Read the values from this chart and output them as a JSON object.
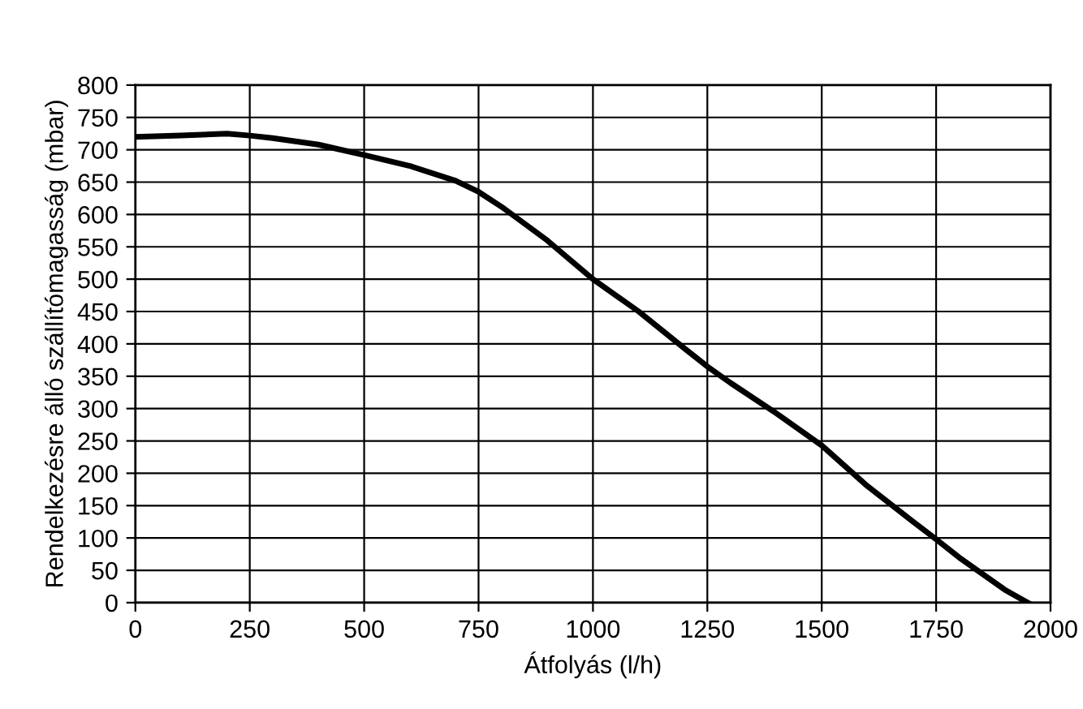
{
  "chart_data": {
    "type": "line",
    "xlabel": "Átfolyás (l/h)",
    "ylabel": "Rendelkezésre álló szállítómagasság (mbar)",
    "series": [
      {
        "color": "#000000",
        "x": [
          0,
          100,
          200,
          250,
          300,
          400,
          500,
          600,
          700,
          750,
          800,
          900,
          1000,
          1100,
          1200,
          1250,
          1300,
          1400,
          1500,
          1600,
          1700,
          1750,
          1800,
          1900,
          1950
        ],
        "values": [
          720,
          722,
          725,
          722,
          718,
          708,
          692,
          675,
          652,
          635,
          612,
          560,
          500,
          450,
          393,
          365,
          340,
          293,
          243,
          180,
          125,
          98,
          70,
          20,
          0
        ]
      }
    ],
    "xlim": [
      0,
      2000
    ],
    "xticks": [
      0,
      250,
      500,
      750,
      1000,
      1250,
      1500,
      1750,
      2000
    ],
    "ylim": [
      0,
      800
    ],
    "yticks": [
      0,
      50,
      100,
      150,
      200,
      250,
      300,
      350,
      400,
      450,
      500,
      550,
      600,
      650,
      700,
      750,
      800
    ],
    "grid": true,
    "marker": "none",
    "line_style": "solid",
    "legend": false
  }
}
